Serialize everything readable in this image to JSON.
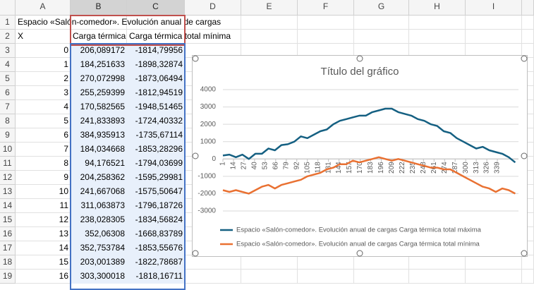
{
  "spreadsheet": {
    "column_headers": [
      "A",
      "B",
      "C",
      "D",
      "E",
      "F",
      "G",
      "H",
      "I"
    ],
    "row_headers": [
      1,
      2,
      3,
      4,
      5,
      6,
      7,
      8,
      9,
      10,
      11,
      12,
      13,
      14,
      15,
      16,
      17,
      18,
      19
    ],
    "title_cell": "Espacio «Salón-comedor». Evolución anual de cargas",
    "header_cells": [
      "X",
      "Carga térmica total máxima",
      "Carga térmica total mínima"
    ],
    "rows": [
      [
        0,
        "206,089172",
        "-1814,79956"
      ],
      [
        1,
        "184,251633",
        "-1898,32874"
      ],
      [
        2,
        "270,072998",
        "-1873,06494"
      ],
      [
        3,
        "255,259399",
        "-1812,94519"
      ],
      [
        4,
        "170,582565",
        "-1948,51465"
      ],
      [
        5,
        "241,833893",
        "-1724,40332"
      ],
      [
        6,
        "384,935913",
        "-1735,67114"
      ],
      [
        7,
        "184,034668",
        "-1853,28296"
      ],
      [
        8,
        "94,176521",
        "-1794,03699"
      ],
      [
        9,
        "204,258362",
        "-1595,29981"
      ],
      [
        10,
        "241,667068",
        "-1575,50647"
      ],
      [
        11,
        "311,063873",
        "-1796,18726"
      ],
      [
        12,
        "238,028305",
        "-1834,56824"
      ],
      [
        13,
        "352,06308",
        "-1668,83789"
      ],
      [
        14,
        "352,753784",
        "-1853,55676"
      ],
      [
        15,
        "203,001389",
        "-1822,78687"
      ],
      [
        16,
        "303,300018",
        "-1818,16711"
      ]
    ]
  },
  "chart_data": {
    "type": "line",
    "title": "Título del gráfico",
    "x": [
      1,
      9,
      17,
      25,
      33,
      41,
      49,
      57,
      65,
      73,
      81,
      89,
      97,
      105,
      113,
      121,
      129,
      137,
      145,
      153,
      161,
      169,
      177,
      185,
      193,
      201,
      209,
      217,
      225,
      233,
      241,
      249,
      257,
      265,
      273,
      281,
      289,
      297,
      305,
      313,
      321,
      329,
      337,
      345,
      353,
      361
    ],
    "series": [
      {
        "name": "Espacio «Salón-comedor». Evolución anual de cargas Carga térmica total máxima",
        "color": "#156082",
        "values": [
          200,
          250,
          100,
          250,
          0,
          300,
          300,
          600,
          500,
          800,
          850,
          1000,
          1300,
          1200,
          1400,
          1600,
          1700,
          2000,
          2200,
          2300,
          2400,
          2500,
          2500,
          2700,
          2800,
          2900,
          2900,
          2700,
          2600,
          2500,
          2300,
          2200,
          2000,
          1900,
          1600,
          1500,
          1200,
          1000,
          800,
          600,
          700,
          500,
          400,
          300,
          100,
          -200
        ]
      },
      {
        "name": "Espacio «Salón-comedor». Evolución anual de cargas Carga térmica total mínima",
        "color": "#e97132",
        "values": [
          -1800,
          -1900,
          -1800,
          -1900,
          -2000,
          -1800,
          -1600,
          -1500,
          -1700,
          -1500,
          -1400,
          -1300,
          -1200,
          -1000,
          -900,
          -800,
          -600,
          -500,
          -300,
          -300,
          -100,
          -200,
          -100,
          0,
          100,
          0,
          -100,
          0,
          -100,
          -200,
          -300,
          -400,
          -500,
          -500,
          -600,
          -600,
          -800,
          -1000,
          -1200,
          -1400,
          -1600,
          -1700,
          -1900,
          -1700,
          -1800,
          -2000
        ]
      }
    ],
    "xlim": [
      1,
      365
    ],
    "xticks": [
      1,
      14,
      27,
      40,
      53,
      66,
      79,
      92,
      105,
      118,
      131,
      144,
      157,
      170,
      183,
      196,
      209,
      222,
      235,
      248,
      261,
      274,
      287,
      300,
      313,
      326,
      339
    ],
    "ylim": [
      -3000,
      4000
    ],
    "yticks": [
      -3000,
      -2000,
      -1000,
      0,
      1000,
      2000,
      3000,
      4000
    ],
    "grid": true,
    "legend": "bottom"
  }
}
